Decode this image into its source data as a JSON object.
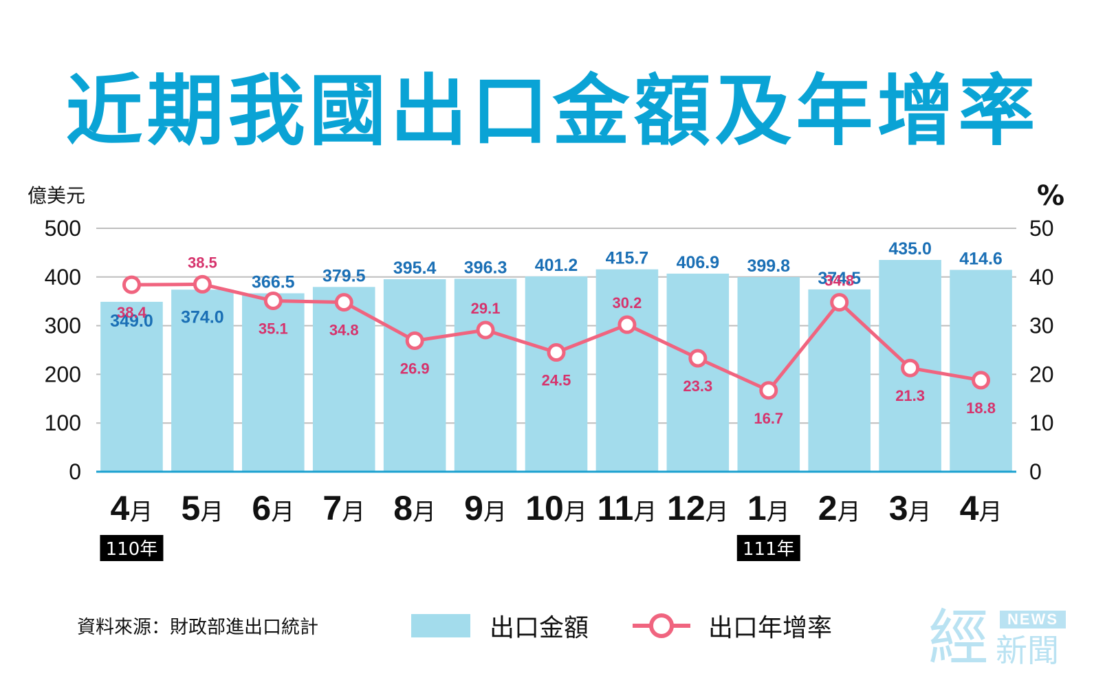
{
  "title": "近期我國出口金額及年增率",
  "chart_data": {
    "type": "bar",
    "categories": [
      "4",
      "5",
      "6",
      "7",
      "8",
      "9",
      "10",
      "11",
      "12",
      "1",
      "2",
      "3",
      "4"
    ],
    "month_suffix": "月",
    "year_tags": [
      {
        "index": 0,
        "label": "110年"
      },
      {
        "index": 9,
        "label": "111年"
      }
    ],
    "left_axis": {
      "unit": "億美元",
      "ticks": [
        "0",
        "100",
        "200",
        "300",
        "400",
        "500"
      ],
      "ylim": [
        0,
        500
      ]
    },
    "right_axis": {
      "unit": "%",
      "ticks": [
        "0",
        "10",
        "20",
        "30",
        "40",
        "50"
      ],
      "ylim": [
        0,
        50
      ]
    },
    "series": [
      {
        "name": "出口金額",
        "type": "bar",
        "values": [
          349.0,
          374.0,
          366.5,
          379.5,
          395.4,
          396.3,
          401.2,
          415.7,
          406.9,
          399.8,
          374.5,
          435.0,
          414.6
        ],
        "labels": [
          "349.0",
          "374.0",
          "366.5",
          "379.5",
          "395.4",
          "396.3",
          "401.2",
          "415.7",
          "406.9",
          "399.8",
          "374.5",
          "435.0",
          "414.6"
        ],
        "color": "#a3dcec",
        "label_color": "#1a6fb5"
      },
      {
        "name": "出口年增率",
        "type": "line",
        "values": [
          38.4,
          38.5,
          35.1,
          34.8,
          26.9,
          29.1,
          24.5,
          30.2,
          23.3,
          16.7,
          34.8,
          21.3,
          18.8
        ],
        "labels": [
          "38.4",
          "38.5",
          "35.1",
          "34.8",
          "26.9",
          "29.1",
          "24.5",
          "30.2",
          "23.3",
          "16.7",
          "34.8",
          "21.3",
          "18.8"
        ],
        "color": "#f0647f",
        "label_color": "#d6336c"
      }
    ],
    "grid": true
  },
  "source": "資料來源：財政部進出口統計",
  "logo": {
    "main": "經",
    "news": "NEWS",
    "sub": "新聞"
  }
}
